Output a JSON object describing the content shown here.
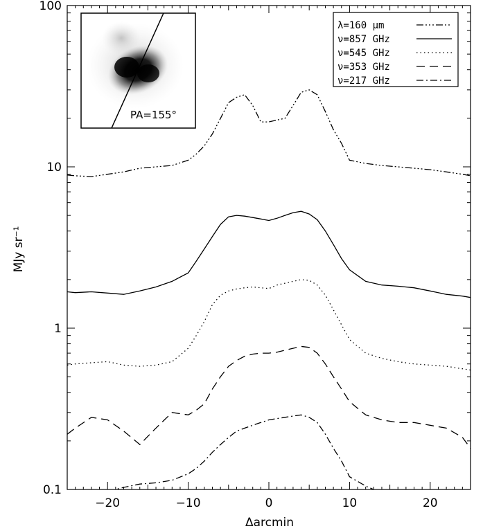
{
  "chart_data": {
    "type": "line",
    "xlabel": "Δarcmin",
    "ylabel": "MJy sr⁻¹",
    "xlim": [
      -25,
      25
    ],
    "ylim": [
      0.1,
      100
    ],
    "yscale": "log",
    "x_ticks": [
      -20,
      -10,
      0,
      10,
      20
    ],
    "x_tick_labels": [
      "−20",
      "−10",
      "0",
      "10",
      "20"
    ],
    "y_ticks": [
      0.1,
      1,
      10,
      100
    ],
    "y_tick_labels": [
      "0.1",
      "1",
      "10",
      "100"
    ],
    "legend_position": "top-right",
    "inset_label": "PA=155°",
    "series": [
      {
        "name": "λ=160 µm",
        "dash": "dash-dot-dot-dot",
        "x": [
          -25,
          -24,
          -22,
          -20,
          -18,
          -16,
          -14,
          -12,
          -10,
          -9,
          -8,
          -7,
          -6,
          -5,
          -4,
          -3,
          -2,
          -1,
          0,
          1,
          2,
          3,
          4,
          5,
          6,
          7,
          8,
          9,
          10,
          12,
          14,
          16,
          18,
          20,
          22,
          24,
          25
        ],
        "y": [
          8.9,
          8.8,
          8.7,
          9.0,
          9.3,
          9.8,
          10.0,
          10.2,
          11.0,
          12.0,
          13.5,
          16,
          20,
          25,
          27,
          28,
          24,
          19,
          19,
          19.5,
          20,
          24,
          29,
          30,
          28,
          22,
          17,
          14,
          11,
          10.5,
          10.2,
          10.0,
          9.8,
          9.6,
          9.3,
          9.0,
          8.8
        ]
      },
      {
        "name": "ν=857 GHz",
        "dash": "solid",
        "x": [
          -25,
          -24,
          -22,
          -20,
          -18,
          -16,
          -14,
          -12,
          -10,
          -9,
          -8,
          -7,
          -6,
          -5,
          -4,
          -3,
          -2,
          -1,
          0,
          1,
          2,
          3,
          4,
          5,
          6,
          7,
          8,
          9,
          10,
          12,
          14,
          16,
          18,
          20,
          22,
          24,
          25
        ],
        "y": [
          1.68,
          1.66,
          1.68,
          1.65,
          1.62,
          1.7,
          1.8,
          1.95,
          2.2,
          2.6,
          3.1,
          3.7,
          4.4,
          4.9,
          5.0,
          4.95,
          4.85,
          4.75,
          4.65,
          4.8,
          5.0,
          5.2,
          5.3,
          5.1,
          4.7,
          4.0,
          3.3,
          2.7,
          2.3,
          1.95,
          1.85,
          1.82,
          1.78,
          1.7,
          1.62,
          1.58,
          1.55
        ]
      },
      {
        "name": "ν=545 GHz",
        "dash": "dotted",
        "x": [
          -25,
          -24,
          -22,
          -20,
          -18,
          -16,
          -14,
          -12,
          -10,
          -9,
          -8,
          -7,
          -6,
          -5,
          -4,
          -3,
          -2,
          -1,
          0,
          1,
          2,
          3,
          4,
          5,
          6,
          7,
          8,
          9,
          10,
          12,
          14,
          16,
          18,
          20,
          22,
          24,
          25
        ],
        "y": [
          0.59,
          0.6,
          0.61,
          0.62,
          0.59,
          0.58,
          0.59,
          0.62,
          0.75,
          0.9,
          1.1,
          1.4,
          1.6,
          1.7,
          1.75,
          1.78,
          1.8,
          1.78,
          1.76,
          1.85,
          1.9,
          1.95,
          2.0,
          1.98,
          1.85,
          1.6,
          1.3,
          1.05,
          0.85,
          0.7,
          0.65,
          0.62,
          0.6,
          0.59,
          0.58,
          0.56,
          0.55
        ]
      },
      {
        "name": "ν=353 GHz",
        "dash": "dashed",
        "x": [
          -25,
          -24,
          -22,
          -20,
          -18,
          -16,
          -14,
          -12,
          -10,
          -9,
          -8,
          -7,
          -6,
          -5,
          -4,
          -3,
          -2,
          -1,
          0,
          1,
          2,
          3,
          4,
          5,
          6,
          7,
          8,
          9,
          10,
          12,
          14,
          16,
          18,
          20,
          22,
          24,
          25
        ],
        "y": [
          0.22,
          0.24,
          0.28,
          0.27,
          0.23,
          0.19,
          0.24,
          0.3,
          0.29,
          0.31,
          0.34,
          0.42,
          0.5,
          0.58,
          0.63,
          0.67,
          0.69,
          0.7,
          0.7,
          0.71,
          0.73,
          0.75,
          0.77,
          0.76,
          0.7,
          0.6,
          0.5,
          0.42,
          0.35,
          0.29,
          0.27,
          0.26,
          0.26,
          0.25,
          0.24,
          0.21,
          0.18
        ]
      },
      {
        "name": "ν=217 GHz",
        "dash": "dash-dot",
        "x": [
          -25,
          -24,
          -22,
          -20,
          -18,
          -16,
          -14,
          -12,
          -10,
          -9,
          -8,
          -7,
          -6,
          -5,
          -4,
          -3,
          -2,
          -1,
          0,
          1,
          2,
          3,
          4,
          5,
          6,
          7,
          8,
          9,
          10,
          12,
          14
        ],
        "y": [
          0.098,
          0.095,
          0.094,
          0.097,
          0.103,
          0.108,
          0.11,
          0.114,
          0.125,
          0.135,
          0.15,
          0.17,
          0.19,
          0.21,
          0.23,
          0.24,
          0.25,
          0.26,
          0.27,
          0.275,
          0.28,
          0.285,
          0.29,
          0.28,
          0.26,
          0.22,
          0.18,
          0.15,
          0.12,
          0.105,
          0.095
        ]
      }
    ]
  }
}
